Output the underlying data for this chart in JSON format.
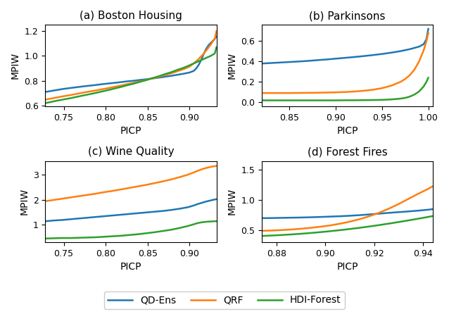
{
  "subplots": [
    {
      "title": "(a) Boston Housing",
      "xlabel": "PICP",
      "ylabel": "MPIW",
      "xlim": [
        0.728,
        0.932
      ],
      "ylim": [
        0.595,
        1.25
      ],
      "yticks": [
        0.6,
        0.8,
        1.0,
        1.2
      ],
      "xticks": [
        0.75,
        0.8,
        0.85,
        0.9
      ],
      "qd_ens": {
        "x": [
          0.728,
          0.735,
          0.742,
          0.75,
          0.758,
          0.765,
          0.772,
          0.78,
          0.788,
          0.795,
          0.803,
          0.81,
          0.818,
          0.825,
          0.833,
          0.84,
          0.848,
          0.855,
          0.863,
          0.87,
          0.878,
          0.885,
          0.893,
          0.9,
          0.905,
          0.908,
          0.911,
          0.914,
          0.917,
          0.92,
          0.923,
          0.926,
          0.929,
          0.932
        ],
        "y": [
          0.71,
          0.718,
          0.726,
          0.735,
          0.742,
          0.748,
          0.754,
          0.76,
          0.766,
          0.772,
          0.778,
          0.783,
          0.789,
          0.795,
          0.8,
          0.806,
          0.812,
          0.818,
          0.825,
          0.832,
          0.84,
          0.848,
          0.857,
          0.867,
          0.88,
          0.9,
          0.93,
          0.97,
          1.02,
          1.06,
          1.09,
          1.11,
          1.13,
          1.155
        ]
      },
      "qrf": {
        "x": [
          0.728,
          0.735,
          0.742,
          0.75,
          0.758,
          0.765,
          0.772,
          0.78,
          0.788,
          0.795,
          0.803,
          0.81,
          0.818,
          0.825,
          0.833,
          0.84,
          0.848,
          0.855,
          0.863,
          0.87,
          0.878,
          0.885,
          0.893,
          0.9,
          0.905,
          0.91,
          0.915,
          0.92,
          0.925,
          0.93,
          0.932
        ],
        "y": [
          0.648,
          0.657,
          0.666,
          0.676,
          0.685,
          0.694,
          0.703,
          0.713,
          0.722,
          0.731,
          0.741,
          0.751,
          0.761,
          0.772,
          0.783,
          0.794,
          0.806,
          0.818,
          0.831,
          0.845,
          0.86,
          0.876,
          0.894,
          0.915,
          0.94,
          0.97,
          1.005,
          1.045,
          1.09,
          1.14,
          1.2
        ]
      },
      "hdi": {
        "x": [
          0.728,
          0.735,
          0.742,
          0.75,
          0.758,
          0.765,
          0.772,
          0.78,
          0.788,
          0.795,
          0.803,
          0.81,
          0.818,
          0.825,
          0.833,
          0.84,
          0.848,
          0.855,
          0.863,
          0.87,
          0.878,
          0.885,
          0.893,
          0.9,
          0.905,
          0.91,
          0.915,
          0.92,
          0.925,
          0.93,
          0.932
        ],
        "y": [
          0.62,
          0.63,
          0.64,
          0.65,
          0.66,
          0.67,
          0.68,
          0.691,
          0.702,
          0.713,
          0.725,
          0.737,
          0.75,
          0.763,
          0.776,
          0.79,
          0.805,
          0.82,
          0.836,
          0.852,
          0.869,
          0.887,
          0.905,
          0.925,
          0.94,
          0.955,
          0.97,
          0.985,
          1.0,
          1.02,
          1.07
        ]
      }
    },
    {
      "title": "(b) Parkinsons",
      "xlabel": "PICP",
      "ylabel": "MPIW",
      "xlim": [
        0.82,
        1.005
      ],
      "ylim": [
        -0.04,
        0.76
      ],
      "yticks": [
        0.0,
        0.2,
        0.4,
        0.6
      ],
      "xticks": [
        0.85,
        0.9,
        0.95,
        1.0
      ],
      "qd_ens": {
        "x": [
          0.82,
          0.83,
          0.84,
          0.85,
          0.86,
          0.87,
          0.88,
          0.89,
          0.9,
          0.91,
          0.92,
          0.93,
          0.94,
          0.95,
          0.96,
          0.97,
          0.98,
          0.99,
          0.995,
          0.998,
          1.0
        ],
        "y": [
          0.38,
          0.385,
          0.39,
          0.395,
          0.4,
          0.406,
          0.413,
          0.42,
          0.428,
          0.436,
          0.444,
          0.453,
          0.463,
          0.474,
          0.487,
          0.502,
          0.521,
          0.546,
          0.57,
          0.62,
          0.72
        ]
      },
      "qrf": {
        "x": [
          0.82,
          0.83,
          0.84,
          0.85,
          0.86,
          0.87,
          0.88,
          0.89,
          0.9,
          0.91,
          0.92,
          0.93,
          0.94,
          0.95,
          0.96,
          0.97,
          0.975,
          0.98,
          0.985,
          0.99,
          0.995,
          0.998,
          1.0
        ],
        "y": [
          0.09,
          0.09,
          0.09,
          0.09,
          0.091,
          0.092,
          0.093,
          0.095,
          0.097,
          0.1,
          0.105,
          0.112,
          0.122,
          0.138,
          0.162,
          0.2,
          0.228,
          0.265,
          0.32,
          0.4,
          0.51,
          0.6,
          0.68
        ]
      },
      "hdi": {
        "x": [
          0.82,
          0.83,
          0.84,
          0.85,
          0.86,
          0.87,
          0.88,
          0.89,
          0.9,
          0.91,
          0.92,
          0.93,
          0.94,
          0.95,
          0.96,
          0.97,
          0.975,
          0.98,
          0.985,
          0.99,
          0.995,
          0.998,
          1.0
        ],
        "y": [
          0.018,
          0.018,
          0.018,
          0.018,
          0.018,
          0.018,
          0.018,
          0.018,
          0.018,
          0.019,
          0.019,
          0.02,
          0.021,
          0.023,
          0.027,
          0.035,
          0.042,
          0.055,
          0.075,
          0.105,
          0.155,
          0.2,
          0.24
        ]
      }
    },
    {
      "title": "(c) Wine Quality",
      "xlabel": "PICP",
      "ylabel": "MPIW",
      "xlim": [
        0.728,
        0.932
      ],
      "ylim": [
        0.3,
        3.55
      ],
      "yticks": [
        1,
        2,
        3
      ],
      "xticks": [
        0.75,
        0.8,
        0.85,
        0.9
      ],
      "qd_ens": {
        "x": [
          0.728,
          0.738,
          0.748,
          0.758,
          0.768,
          0.778,
          0.788,
          0.798,
          0.808,
          0.818,
          0.828,
          0.838,
          0.848,
          0.858,
          0.868,
          0.878,
          0.888,
          0.898,
          0.905,
          0.91,
          0.915,
          0.92,
          0.925,
          0.93,
          0.932
        ],
        "y": [
          1.14,
          1.17,
          1.19,
          1.22,
          1.25,
          1.28,
          1.31,
          1.34,
          1.37,
          1.4,
          1.43,
          1.46,
          1.49,
          1.52,
          1.55,
          1.59,
          1.64,
          1.7,
          1.77,
          1.83,
          1.88,
          1.93,
          1.97,
          2.01,
          2.02
        ]
      },
      "qrf": {
        "x": [
          0.728,
          0.738,
          0.748,
          0.758,
          0.768,
          0.778,
          0.788,
          0.798,
          0.808,
          0.818,
          0.828,
          0.838,
          0.848,
          0.858,
          0.868,
          0.878,
          0.888,
          0.898,
          0.905,
          0.91,
          0.915,
          0.92,
          0.925,
          0.93,
          0.932
        ],
        "y": [
          1.94,
          1.99,
          2.04,
          2.09,
          2.14,
          2.19,
          2.24,
          2.3,
          2.35,
          2.41,
          2.47,
          2.53,
          2.59,
          2.66,
          2.73,
          2.81,
          2.9,
          3.0,
          3.09,
          3.16,
          3.22,
          3.27,
          3.31,
          3.34,
          3.35
        ]
      },
      "hdi": {
        "x": [
          0.728,
          0.738,
          0.748,
          0.758,
          0.768,
          0.778,
          0.788,
          0.798,
          0.808,
          0.818,
          0.828,
          0.838,
          0.848,
          0.858,
          0.868,
          0.878,
          0.888,
          0.898,
          0.905,
          0.91,
          0.915,
          0.92,
          0.925,
          0.93,
          0.932
        ],
        "y": [
          0.45,
          0.46,
          0.47,
          0.47,
          0.48,
          0.49,
          0.5,
          0.52,
          0.54,
          0.56,
          0.59,
          0.62,
          0.66,
          0.7,
          0.75,
          0.8,
          0.87,
          0.95,
          1.02,
          1.07,
          1.1,
          1.12,
          1.13,
          1.14,
          1.14
        ]
      }
    },
    {
      "title": "(d) Forest Fires",
      "xlabel": "PICP",
      "ylabel": "MPIW",
      "xlim": [
        0.874,
        0.944
      ],
      "ylim": [
        0.3,
        1.65
      ],
      "yticks": [
        0.5,
        1.0,
        1.5
      ],
      "xticks": [
        0.88,
        0.9,
        0.92,
        0.94
      ],
      "qd_ens": {
        "x": [
          0.874,
          0.878,
          0.882,
          0.886,
          0.89,
          0.894,
          0.898,
          0.902,
          0.906,
          0.91,
          0.914,
          0.918,
          0.922,
          0.926,
          0.93,
          0.934,
          0.938,
          0.942,
          0.944
        ],
        "y": [
          0.7,
          0.702,
          0.705,
          0.708,
          0.711,
          0.715,
          0.72,
          0.726,
          0.732,
          0.74,
          0.75,
          0.762,
          0.775,
          0.788,
          0.8,
          0.812,
          0.825,
          0.84,
          0.85
        ]
      },
      "qrf": {
        "x": [
          0.874,
          0.878,
          0.882,
          0.886,
          0.89,
          0.894,
          0.898,
          0.902,
          0.906,
          0.91,
          0.914,
          0.918,
          0.922,
          0.926,
          0.93,
          0.934,
          0.938,
          0.942,
          0.944
        ],
        "y": [
          0.49,
          0.495,
          0.502,
          0.512,
          0.524,
          0.54,
          0.558,
          0.58,
          0.608,
          0.642,
          0.683,
          0.732,
          0.79,
          0.858,
          0.935,
          1.02,
          1.105,
          1.185,
          1.23
        ]
      },
      "hdi": {
        "x": [
          0.874,
          0.878,
          0.882,
          0.886,
          0.89,
          0.894,
          0.898,
          0.902,
          0.906,
          0.91,
          0.914,
          0.918,
          0.922,
          0.926,
          0.93,
          0.934,
          0.938,
          0.942,
          0.944
        ],
        "y": [
          0.405,
          0.412,
          0.42,
          0.43,
          0.441,
          0.454,
          0.468,
          0.484,
          0.501,
          0.52,
          0.54,
          0.562,
          0.585,
          0.61,
          0.636,
          0.663,
          0.691,
          0.72,
          0.736
        ]
      }
    }
  ],
  "colors": {
    "qd_ens": "#1f77b4",
    "qrf": "#ff7f0e",
    "hdi": "#2ca02c"
  },
  "legend_labels": [
    "QD-Ens",
    "QRF",
    "HDI-Forest"
  ],
  "linewidth": 1.8
}
